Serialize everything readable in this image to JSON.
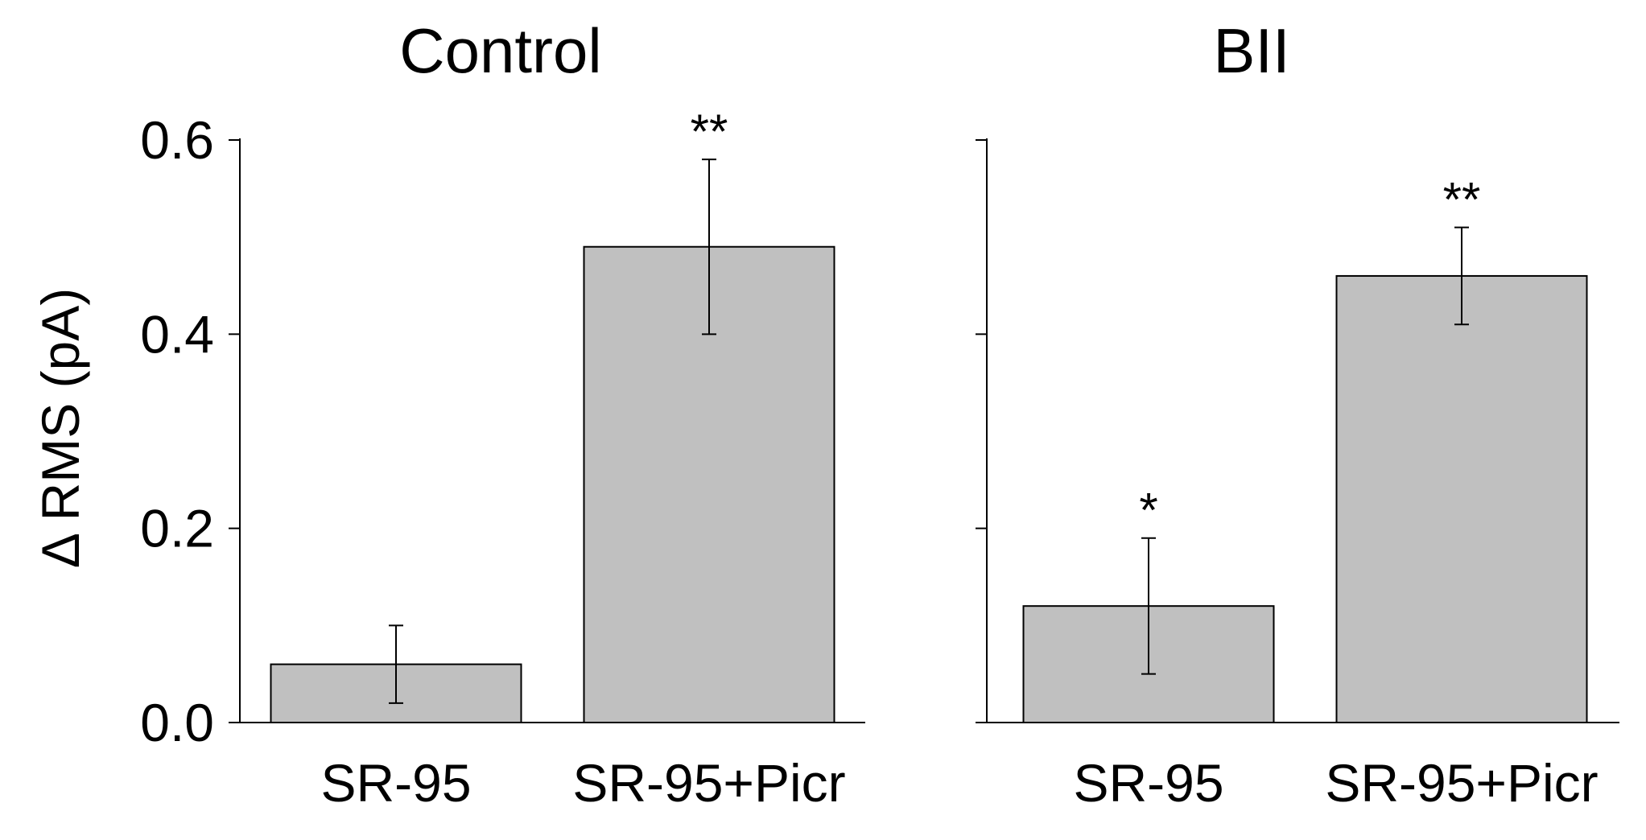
{
  "chart_data": [
    {
      "type": "bar",
      "title": "Control",
      "ylabel": "Δ RMS (pA)",
      "ylim": [
        0,
        0.6
      ],
      "yticks": [
        "0.0",
        "0.2",
        "0.4",
        "0.6"
      ],
      "categories": [
        "SR-95",
        "SR-95+Picr"
      ],
      "values": [
        0.06,
        0.49
      ],
      "errors": [
        0.04,
        0.09
      ],
      "annotations": [
        "",
        "**"
      ],
      "bar_color": "#c0c0c0"
    },
    {
      "type": "bar",
      "title": "BII",
      "ylim": [
        0,
        0.6
      ],
      "categories": [
        "SR-95",
        "SR-95+Picr"
      ],
      "values": [
        0.12,
        0.46
      ],
      "errors": [
        0.07,
        0.05
      ],
      "annotations": [
        "*",
        "**"
      ],
      "bar_color": "#c0c0c0"
    }
  ]
}
